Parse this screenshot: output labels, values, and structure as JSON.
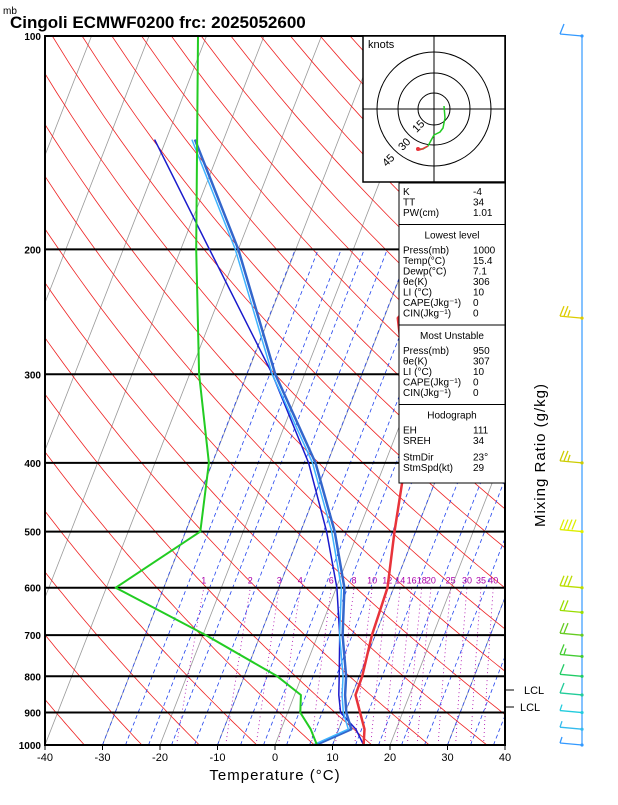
{
  "title": "Cingoli ECMWF0200  frc: 2025052600",
  "pressure_unit": "mb",
  "x_axis_label": "Temperature (°C)",
  "right_axis_label": "Mixing Ratio (g/kg)",
  "hodograph": {
    "unit_label": "knots",
    "ring_labels": [
      "15",
      "30",
      "45"
    ]
  },
  "mixing_ratio_labels": [
    "1",
    "2",
    "3",
    "4",
    "6",
    "8",
    "10",
    "12",
    "14",
    "16",
    "18",
    "20",
    "25",
    "30",
    "35",
    "40"
  ],
  "lcl_labels": [
    "LCL",
    "LCL"
  ],
  "indices": {
    "top": [
      {
        "label": "K",
        "value": "-4"
      },
      {
        "label": "TT",
        "value": "34"
      },
      {
        "label": "PW(cm)",
        "value": "1.01"
      }
    ],
    "lowest_level": {
      "header": "Lowest level",
      "rows": [
        {
          "label": "Press(mb)",
          "value": "1000"
        },
        {
          "label": "Temp(°C)",
          "value": "15.4"
        },
        {
          "label": "Dewp(°C)",
          "value": "7.1"
        },
        {
          "label": "θe(K)",
          "value": "306"
        },
        {
          "label": "LI (°C)",
          "value": "10"
        },
        {
          "label": "CAPE(Jkg⁻¹)",
          "value": "0"
        },
        {
          "label": "CIN(Jkg⁻¹)",
          "value": "0"
        }
      ]
    },
    "most_unstable": {
      "header": "Most Unstable",
      "rows": [
        {
          "label": "Press(mb)",
          "value": "950"
        },
        {
          "label": "θe(K)",
          "value": "307"
        },
        {
          "label": "LI (°C)",
          "value": "10"
        },
        {
          "label": "CAPE(Jkg⁻¹)",
          "value": "0"
        },
        {
          "label": "CIN(Jkg⁻¹)",
          "value": "0"
        }
      ]
    },
    "hodograph_box": {
      "header": "Hodograph",
      "rows": [
        {
          "label": "EH",
          "value": "111"
        },
        {
          "label": "SREH",
          "value": "34"
        },
        {
          "label": "StmDir",
          "value": "23°"
        },
        {
          "label": "StmSpd(kt)",
          "value": "29"
        }
      ]
    }
  },
  "colors": {
    "temperature": "#e8333a",
    "dewpoint": "#3366cc",
    "parcel": "#1a1acc",
    "parcel_light": "#3fb4ff",
    "rh": "#22cc22",
    "dry_adiabat": "#ee2222",
    "moist_adiabat": "#2244ee",
    "isotherm": "#999999",
    "mixing_ratio": "#aa00aa",
    "wind_staff": "#3399ff"
  },
  "chart_data": {
    "type": "line",
    "x_ticks": [
      -40,
      -30,
      -20,
      -10,
      0,
      10,
      20,
      30,
      40
    ],
    "xlim": [
      -40,
      40
    ],
    "y_scale": "log",
    "y_ticks": [
      1000,
      900,
      800,
      700,
      600,
      500,
      400,
      300,
      200,
      100
    ],
    "ylim": [
      1000,
      100
    ],
    "series": [
      {
        "name": "Temperature",
        "points": [
          [
            1000,
            15.4
          ],
          [
            950,
            14.5
          ],
          [
            900,
            12.6
          ],
          [
            850,
            10.6
          ],
          [
            800,
            10.5
          ],
          [
            700,
            9.4
          ],
          [
            600,
            8.9
          ],
          [
            500,
            6.3
          ],
          [
            400,
            3.5
          ],
          [
            300,
            -2.7
          ],
          [
            250,
            -7.6
          ],
          [
            200,
            -1.9
          ],
          [
            100,
            13.8
          ]
        ]
      },
      {
        "name": "Dewpoint",
        "points": [
          [
            1000,
            7.1
          ],
          [
            950,
            12.2
          ],
          [
            900,
            10.2
          ],
          [
            850,
            8.8
          ],
          [
            800,
            7.7
          ],
          [
            700,
            4.3
          ],
          [
            600,
            1.4
          ],
          [
            500,
            -4.1
          ],
          [
            400,
            -12.1
          ],
          [
            300,
            -25.1
          ],
          [
            200,
            -40.0
          ],
          [
            140,
            -55.0
          ]
        ]
      },
      {
        "name": "Parcel",
        "points": [
          [
            1000,
            15.4
          ],
          [
            950,
            13.0
          ],
          [
            900,
            9.2
          ],
          [
            850,
            7.7
          ],
          [
            800,
            6.5
          ],
          [
            700,
            3.8
          ],
          [
            600,
            0.1
          ],
          [
            500,
            -5.5
          ],
          [
            400,
            -13.3
          ],
          [
            300,
            -25.6
          ],
          [
            200,
            -45.0
          ],
          [
            140,
            -62.0
          ]
        ]
      },
      {
        "name": "RH",
        "points": [
          [
            1000,
            7.3
          ],
          [
            950,
            6.2
          ],
          [
            900,
            4.4
          ],
          [
            850,
            4.5
          ],
          [
            800,
            0.4
          ],
          [
            700,
            -12.0
          ],
          [
            600,
            -27.7
          ],
          [
            500,
            -13.0
          ],
          [
            400,
            -11.5
          ],
          [
            300,
            -13.2
          ],
          [
            200,
            -13.7
          ],
          [
            100,
            -13.4
          ]
        ]
      }
    ],
    "wind_barbs": [
      {
        "pressure": 1000,
        "speed_kt": 5
      },
      {
        "pressure": 950,
        "speed_kt": 5
      },
      {
        "pressure": 900,
        "speed_kt": 5
      },
      {
        "pressure": 850,
        "speed_kt": 10
      },
      {
        "pressure": 800,
        "speed_kt": 10
      },
      {
        "pressure": 750,
        "speed_kt": 15
      },
      {
        "pressure": 700,
        "speed_kt": 20
      },
      {
        "pressure": 650,
        "speed_kt": 20
      },
      {
        "pressure": 600,
        "speed_kt": 30
      },
      {
        "pressure": 500,
        "speed_kt": 40
      },
      {
        "pressure": 400,
        "speed_kt": 25
      },
      {
        "pressure": 250,
        "speed_kt": 25
      },
      {
        "pressure": 100,
        "speed_kt": 10
      }
    ]
  }
}
